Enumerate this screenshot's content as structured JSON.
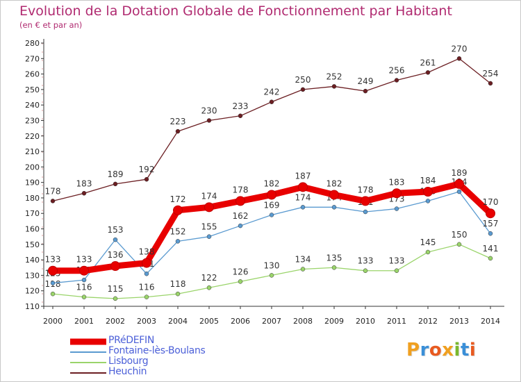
{
  "title": "Evolution de la Dotation Globale de Fonctionnement par Habitant",
  "subtitle": "(en € et par an)",
  "brand": {
    "letters": [
      "P",
      "r",
      "o",
      "x",
      "i",
      "t",
      "i"
    ],
    "colors": [
      "#f0a020",
      "#3a8fd8",
      "#e85a20",
      "#f0a020",
      "#7ab82e",
      "#3a8fd8",
      "#e85a20"
    ]
  },
  "chart_data": {
    "type": "line",
    "x": [
      "2000",
      "2001",
      "2002",
      "2003",
      "2004",
      "2005",
      "2006",
      "2007",
      "2008",
      "2009",
      "2010",
      "2011",
      "2012",
      "2013",
      "2014"
    ],
    "ylim": [
      110,
      280
    ],
    "yticks": [
      "110",
      "120",
      "130",
      "140",
      "150",
      "160",
      "170",
      "180",
      "190",
      "200",
      "210",
      "220",
      "230",
      "240",
      "250",
      "260",
      "270",
      "280"
    ],
    "grid": false,
    "legend_position": "bottom-left",
    "series": [
      {
        "name": "PRéDEFIN",
        "color": "#e80000",
        "values": [
          133,
          133,
          136,
          138,
          172,
          174,
          178,
          182,
          187,
          182,
          178,
          183,
          184,
          189,
          170
        ],
        "labels": [
          "133",
          "133",
          "136",
          "138",
          "172",
          "174",
          "178",
          "182",
          "187",
          "182",
          "178",
          "183",
          "184",
          "189",
          "170"
        ]
      },
      {
        "name": "Fontaine-lès-Boulans",
        "color": "#5a9ad0",
        "values": [
          125,
          127,
          153,
          131,
          152,
          155,
          162,
          169,
          174,
          174,
          171,
          173,
          178,
          184,
          157
        ],
        "labels": [
          "125",
          "127",
          "153",
          "131",
          "152",
          "155",
          "162",
          "169",
          "174",
          "174",
          "171",
          "173",
          "178",
          "184",
          "157"
        ]
      },
      {
        "name": "Lisbourg",
        "color": "#9ad46a",
        "values": [
          118,
          116,
          115,
          116,
          118,
          122,
          126,
          130,
          134,
          135,
          133,
          133,
          145,
          150,
          141
        ],
        "labels": [
          "118",
          "116",
          "115",
          "116",
          "118",
          "122",
          "126",
          "130",
          "134",
          "135",
          "133",
          "133",
          "145",
          "150",
          "141"
        ]
      },
      {
        "name": "Heuchin",
        "color": "#6b1e22",
        "values": [
          178,
          183,
          189,
          192,
          223,
          230,
          233,
          242,
          250,
          252,
          249,
          256,
          261,
          270,
          254
        ],
        "labels": [
          "178",
          "183",
          "189",
          "192",
          "223",
          "230",
          "233",
          "242",
          "250",
          "252",
          "249",
          "256",
          "261",
          "270",
          "254"
        ]
      }
    ]
  }
}
